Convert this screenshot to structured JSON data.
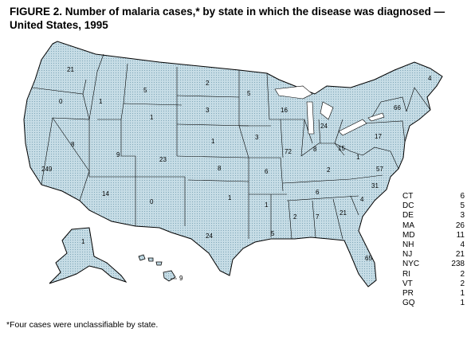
{
  "title": {
    "line1": "FIGURE 2. Number of malaria cases,* by state in which the disease was diagnosed —",
    "line2": "United States, 1995"
  },
  "states": [
    {
      "id": "WA",
      "count": "21"
    },
    {
      "id": "OR",
      "count": "0"
    },
    {
      "id": "CA",
      "count": "249"
    },
    {
      "id": "NV",
      "count": "8"
    },
    {
      "id": "ID",
      "count": "1"
    },
    {
      "id": "MT",
      "count": "5"
    },
    {
      "id": "WY",
      "count": "1"
    },
    {
      "id": "UT",
      "count": "9"
    },
    {
      "id": "AZ",
      "count": "14"
    },
    {
      "id": "CO",
      "count": "23"
    },
    {
      "id": "NM",
      "count": "0"
    },
    {
      "id": "ND",
      "count": "2"
    },
    {
      "id": "SD",
      "count": "3"
    },
    {
      "id": "NE",
      "count": "1"
    },
    {
      "id": "KS",
      "count": "8"
    },
    {
      "id": "OK",
      "count": "1"
    },
    {
      "id": "TX",
      "count": "24"
    },
    {
      "id": "MN",
      "count": "5"
    },
    {
      "id": "IA",
      "count": "3"
    },
    {
      "id": "MO",
      "count": "6"
    },
    {
      "id": "AR",
      "count": "1"
    },
    {
      "id": "LA",
      "count": "5"
    },
    {
      "id": "WI",
      "count": "16"
    },
    {
      "id": "IL",
      "count": "72"
    },
    {
      "id": "MI",
      "count": "24"
    },
    {
      "id": "IN",
      "count": "8"
    },
    {
      "id": "OH",
      "count": "15"
    },
    {
      "id": "KY",
      "count": "2"
    },
    {
      "id": "TN",
      "count": "6"
    },
    {
      "id": "MS",
      "count": "2"
    },
    {
      "id": "AL",
      "count": "7"
    },
    {
      "id": "GA",
      "count": "21"
    },
    {
      "id": "FL",
      "count": "65"
    },
    {
      "id": "SC",
      "count": "4"
    },
    {
      "id": "NC",
      "count": "31"
    },
    {
      "id": "VA",
      "count": "57"
    },
    {
      "id": "WV",
      "count": "1"
    },
    {
      "id": "PA",
      "count": "17"
    },
    {
      "id": "NY",
      "count": "66"
    },
    {
      "id": "ME",
      "count": "4"
    },
    {
      "id": "AK",
      "count": "1"
    },
    {
      "id": "HI",
      "count": "9"
    }
  ],
  "legend": [
    {
      "state": "CT",
      "count": "6"
    },
    {
      "state": "DC",
      "count": "5"
    },
    {
      "state": "DE",
      "count": "3"
    },
    {
      "state": "MA",
      "count": "26"
    },
    {
      "state": "MD",
      "count": "11"
    },
    {
      "state": "NH",
      "count": "4"
    },
    {
      "state": "NJ",
      "count": "21"
    },
    {
      "state": "NYC",
      "count": "238"
    },
    {
      "state": "RI",
      "count": "2"
    },
    {
      "state": "VT",
      "count": "2"
    },
    {
      "state": "PR",
      "count": "1"
    },
    {
      "state": "GQ",
      "count": "1"
    }
  ],
  "footnote": "*Four cases were unclassifiable by state.",
  "colors": {
    "fill": "#c7dde6",
    "dot": "#7fa7b8",
    "stroke": "#000000"
  }
}
